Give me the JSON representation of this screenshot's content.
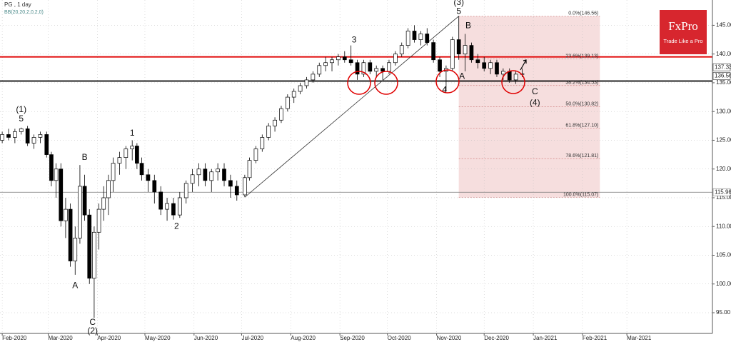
{
  "chart_data": {
    "type": "candlestick",
    "title": "PG , 1 day",
    "subtitle": "BB(20,20,2,0,2,0)",
    "x": [
      0,
      4,
      8,
      12,
      16,
      20,
      24,
      28,
      31,
      34,
      37,
      40,
      43,
      46,
      49,
      52,
      55,
      58,
      61,
      64,
      67,
      70,
      74,
      78,
      82,
      85,
      88,
      92,
      96,
      100,
      104,
      108,
      112,
      116,
      120,
      124,
      128,
      132,
      136,
      140,
      144,
      148,
      153,
      156,
      160,
      164,
      168,
      172,
      176,
      180,
      184,
      188,
      192,
      196,
      200,
      204,
      208,
      212,
      216,
      220,
      224,
      228,
      232,
      236,
      240,
      244,
      248,
      252,
      256,
      260,
      264,
      268,
      272,
      276,
      280,
      284,
      288,
      292,
      296,
      300,
      304,
      308,
      312,
      316,
      320,
      324,
      328
    ],
    "open": [
      125,
      126,
      125.5,
      126.5,
      127,
      124.5,
      125.5,
      126,
      122.5,
      118,
      120,
      111,
      113,
      104,
      108,
      117,
      112,
      101,
      109,
      113,
      115,
      118,
      121,
      122,
      123.5,
      124,
      121,
      119,
      118,
      116,
      113,
      114,
      112,
      115,
      117.5,
      119,
      120,
      118,
      119.5,
      120,
      118,
      117,
      115.5,
      118.5,
      121.5,
      123.5,
      125.5,
      127.5,
      128.5,
      130.5,
      132.5,
      133.5,
      134.5,
      135.5,
      136.5,
      138,
      138.5,
      139,
      139.5,
      139,
      138.5,
      136.5,
      138.5,
      137,
      137.5,
      137,
      138.5,
      140,
      141.5,
      144,
      142.5,
      143.5,
      142,
      139,
      137,
      137.5,
      142.5,
      140,
      141.5,
      139,
      138.5,
      137.5,
      138.5,
      136.5,
      137,
      135.5,
      136.5
    ],
    "high": [
      126.5,
      127,
      127,
      127.2,
      127.5,
      126,
      126.5,
      126.5,
      123,
      121,
      121,
      115,
      114,
      110,
      120.7,
      119,
      113,
      110,
      114,
      117,
      119,
      122,
      123,
      124,
      125,
      124.5,
      122,
      120,
      119,
      117,
      115,
      115,
      116,
      118,
      120,
      121,
      121,
      120,
      121,
      121,
      119,
      118,
      119,
      122,
      124,
      126,
      128,
      129,
      131,
      133,
      134,
      135,
      136,
      137,
      138.5,
      139.5,
      139.5,
      140,
      140.5,
      141.5,
      139,
      139,
      139,
      138,
      138,
      139,
      140.5,
      142,
      144.5,
      145,
      144,
      144.5,
      142.5,
      139.5,
      138,
      143,
      146.6,
      143.5,
      142,
      140,
      139.5,
      139,
      139,
      137.5,
      137.5,
      137,
      137.5
    ],
    "low": [
      124.5,
      125,
      124.5,
      126,
      124,
      123.5,
      124.5,
      122,
      117,
      115,
      110,
      108,
      103,
      101.6,
      107,
      111,
      100,
      94.1,
      106,
      111,
      112,
      116,
      119,
      120,
      121.5,
      120,
      118,
      116,
      114,
      112,
      111,
      111.2,
      111.5,
      114,
      116,
      117,
      117,
      116,
      118,
      117,
      115,
      114.5,
      115.1,
      118,
      121,
      123,
      125,
      126.5,
      128,
      130,
      131.5,
      133,
      134,
      135,
      136,
      137,
      137,
      138,
      138.5,
      138,
      135.5,
      136,
      136.5,
      136,
      135.5,
      136.5,
      138,
      139.5,
      141,
      142,
      141.5,
      141.5,
      138.5,
      136,
      133.5,
      137,
      139,
      137,
      138.5,
      137.5,
      137,
      136.5,
      136,
      135.5,
      135,
      134.8,
      136
    ],
    "close": [
      126,
      125.5,
      126.5,
      127,
      124.5,
      125.5,
      126,
      122.5,
      118,
      120,
      111,
      113,
      104,
      108,
      117,
      112,
      101,
      109,
      113,
      115,
      118,
      121,
      122,
      123.5,
      124,
      121,
      119,
      118,
      116,
      113,
      114,
      112,
      115,
      117.5,
      119,
      120,
      118,
      119.5,
      120,
      118,
      117,
      115.5,
      118.5,
      121.5,
      123.5,
      125.5,
      127.5,
      128.5,
      130.5,
      132.5,
      133.5,
      134.5,
      135.5,
      136.5,
      138,
      138.5,
      139,
      139.5,
      139,
      138.5,
      136.5,
      138.5,
      137,
      137.5,
      137,
      138.5,
      140,
      141.5,
      144,
      142.5,
      143.5,
      142,
      139,
      137,
      137.5,
      142.5,
      140,
      141.5,
      139,
      138.5,
      137.5,
      138.5,
      136.5,
      137,
      135.5,
      136.5,
      136.56
    ],
    "up_color": "#ffffff",
    "down_color": "#000000",
    "xlim": [
      -1.4,
      448
    ],
    "ylim": [
      91.4,
      149.4
    ],
    "xticks": [
      {
        "value": 0,
        "label": "Feb-2020"
      },
      {
        "value": 29,
        "label": "Mar-2020"
      },
      {
        "value": 60,
        "label": "Apr-2020"
      },
      {
        "value": 90,
        "label": "May-2020"
      },
      {
        "value": 121,
        "label": "Jun-2020"
      },
      {
        "value": 151,
        "label": "Jul-2020"
      },
      {
        "value": 182,
        "label": "Aug-2020"
      },
      {
        "value": 213,
        "label": "Sep-2020"
      },
      {
        "value": 243,
        "label": "Oct-2020"
      },
      {
        "value": 274,
        "label": "Nov-2020"
      },
      {
        "value": 304,
        "label": "Dec-2020"
      },
      {
        "value": 335,
        "label": "Jan-2021"
      },
      {
        "value": 366,
        "label": "Feb-2021"
      },
      {
        "value": 394,
        "label": "Mar-2021"
      }
    ],
    "yticks": [
      {
        "value": 95,
        "label": "95.00"
      },
      {
        "value": 100,
        "label": "100.00"
      },
      {
        "value": 105,
        "label": "105.00"
      },
      {
        "value": 110,
        "label": "110.00"
      },
      {
        "value": 115,
        "label": "115.00"
      },
      {
        "value": 120,
        "label": "120.00"
      },
      {
        "value": 125,
        "label": "125.00"
      },
      {
        "value": 130,
        "label": "130.00"
      },
      {
        "value": 135,
        "label": "135.00"
      },
      {
        "value": 140,
        "label": "140.00"
      },
      {
        "value": 145,
        "label": "145.00"
      }
    ],
    "grid": true,
    "hlines": [
      {
        "value": 139.5,
        "color": "#e00000"
      },
      {
        "value": 135.3,
        "color": "#000000"
      },
      {
        "value": 115.96,
        "color": "#777777"
      }
    ],
    "price_labels": [
      137.33,
      136.56,
      115.96
    ],
    "trendline": {
      "x": [
        153,
        288
      ],
      "y": [
        115.1,
        146.6
      ]
    },
    "fib": {
      "x": [
        288,
        377
      ],
      "color": "#f6dede",
      "levels": [
        {
          "value": 146.56,
          "label": "0.0%(146.56)"
        },
        {
          "value": 139.13,
          "label": "23.6%(139.13)"
        },
        {
          "value": 134.53,
          "label": "38.2%(134.53)"
        },
        {
          "value": 130.82,
          "label": "50.0%(130.82)"
        },
        {
          "value": 127.1,
          "label": "61.8%(127.10)"
        },
        {
          "value": 121.81,
          "label": "78.6%(121.81)"
        },
        {
          "value": 115.07,
          "label": "100.0%(115.07)"
        }
      ]
    },
    "wave_labels": [
      {
        "text": "(1)",
        "x": 12,
        "y": 130.3
      },
      {
        "text": "5",
        "x": 12,
        "y": 128.7
      },
      {
        "text": "A",
        "x": 46,
        "y": 99.7
      },
      {
        "text": "B",
        "x": 52,
        "y": 122
      },
      {
        "text": "C",
        "x": 57,
        "y": 93.3
      },
      {
        "text": "(2)",
        "x": 57,
        "y": 91.8
      },
      {
        "text": "1",
        "x": 82,
        "y": 126.2
      },
      {
        "text": "2",
        "x": 110,
        "y": 110
      },
      {
        "text": "3",
        "x": 222,
        "y": 142.4
      },
      {
        "text": "(3)",
        "x": 288,
        "y": 148.9
      },
      {
        "text": "5",
        "x": 288,
        "y": 147.4
      },
      {
        "text": "4",
        "x": 279,
        "y": 133.7
      },
      {
        "text": "A",
        "x": 290,
        "y": 136.1
      },
      {
        "text": "B",
        "x": 294,
        "y": 144.9
      },
      {
        "text": "C",
        "x": 336,
        "y": 133.4
      },
      {
        "text": "(4)",
        "x": 336,
        "y": 131.5
      }
    ]
  },
  "logo": {
    "name": "FxPro",
    "tagline": "Trade Like a Pro"
  }
}
